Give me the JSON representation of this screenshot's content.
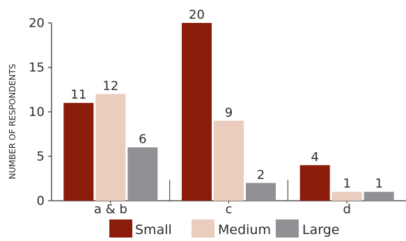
{
  "chart_data": {
    "type": "bar",
    "categories": [
      "a & b",
      "c",
      "d"
    ],
    "series": [
      {
        "name": "Small",
        "values": [
          11,
          20,
          4
        ],
        "color": "#8b1c0c"
      },
      {
        "name": "Medium",
        "values": [
          12,
          9,
          1
        ],
        "color": "#ebcdbd"
      },
      {
        "name": "Large",
        "values": [
          6,
          2,
          1
        ],
        "color": "#8f9195"
      }
    ],
    "ylabel": "NUMBER OF RESPONDENTS",
    "ylim": [
      0,
      20
    ],
    "yticks": [
      0,
      5,
      10,
      15,
      20
    ],
    "grid": false,
    "legend_position": "bottom",
    "data_labels": true
  }
}
